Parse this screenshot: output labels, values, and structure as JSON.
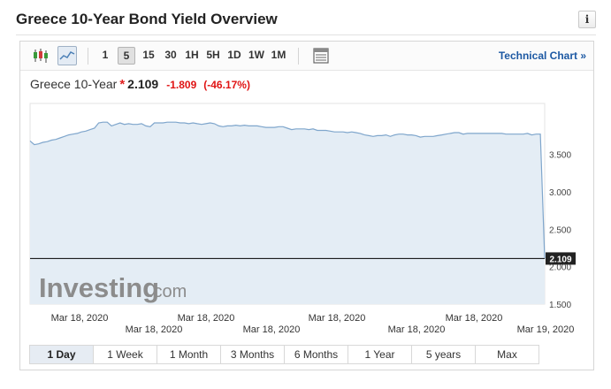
{
  "header": {
    "title": "Greece 10-Year Bond Yield Overview",
    "info_icon": "i"
  },
  "toolbar": {
    "chart_type_icons": [
      "candlestick-icon",
      "area-chart-icon"
    ],
    "active_chart_type": "area-chart-icon",
    "intervals": [
      "1",
      "5",
      "15",
      "30",
      "1H",
      "5H",
      "1D",
      "1W",
      "1M"
    ],
    "active_interval": "5",
    "table_icon": "table-icon",
    "technical_link": "Technical Chart »"
  },
  "quote": {
    "name": "Greece 10-Year",
    "star": "*",
    "price": "2.109",
    "change": "-1.809",
    "change_pct": "(-46.17%)"
  },
  "colors": {
    "accent_link": "#1d59a3",
    "negative": "#e01414",
    "area_fill": "#e4edf5",
    "area_line": "#7fa6cc",
    "price_line": "#000000"
  },
  "watermark": {
    "brand": "Investing",
    "suffix": ".com"
  },
  "chart_data": {
    "type": "area",
    "x_tick_labels_top": [
      "Mar 18, 2020",
      "Mar 18, 2020",
      "Mar 18, 2020",
      "Mar 18, 2020"
    ],
    "x_tick_labels_bottom": [
      "Mar 18, 2020",
      "Mar 18, 2020",
      "Mar 18, 2020",
      "Mar 19, 2020"
    ],
    "y_ticks": [
      "3.500",
      "3.000",
      "2.500",
      "2.000",
      "1.500"
    ],
    "y_tick_values": [
      3.5,
      3.0,
      2.5,
      2.0,
      1.5
    ],
    "ylim": [
      1.5,
      4.18
    ],
    "last_price_label": "2.109",
    "last_price": 2.109,
    "grid": false,
    "values": [
      3.68,
      3.63,
      3.64,
      3.66,
      3.67,
      3.69,
      3.7,
      3.72,
      3.74,
      3.76,
      3.77,
      3.78,
      3.8,
      3.81,
      3.83,
      3.85,
      3.92,
      3.93,
      3.93,
      3.88,
      3.9,
      3.92,
      3.9,
      3.91,
      3.9,
      3.9,
      3.91,
      3.88,
      3.87,
      3.92,
      3.92,
      3.92,
      3.93,
      3.93,
      3.93,
      3.92,
      3.92,
      3.91,
      3.92,
      3.91,
      3.9,
      3.91,
      3.92,
      3.91,
      3.88,
      3.87,
      3.88,
      3.88,
      3.89,
      3.88,
      3.89,
      3.88,
      3.88,
      3.88,
      3.87,
      3.86,
      3.86,
      3.86,
      3.87,
      3.87,
      3.85,
      3.83,
      3.84,
      3.84,
      3.84,
      3.83,
      3.84,
      3.82,
      3.82,
      3.82,
      3.81,
      3.8,
      3.8,
      3.8,
      3.79,
      3.8,
      3.79,
      3.78,
      3.76,
      3.75,
      3.74,
      3.75,
      3.75,
      3.76,
      3.74,
      3.76,
      3.77,
      3.77,
      3.76,
      3.76,
      3.75,
      3.73,
      3.74,
      3.74,
      3.74,
      3.75,
      3.76,
      3.77,
      3.78,
      3.79,
      3.79,
      3.77,
      3.78,
      3.78,
      3.78,
      3.78,
      3.78,
      3.78,
      3.78,
      3.78,
      3.78,
      3.77,
      3.77,
      3.77,
      3.77,
      3.77,
      3.78,
      3.76,
      3.77,
      3.77,
      2.109
    ]
  },
  "ranges": {
    "items": [
      "1 Day",
      "1 Week",
      "1 Month",
      "3 Months",
      "6 Months",
      "1 Year",
      "5 years",
      "Max"
    ],
    "active": "1 Day"
  }
}
